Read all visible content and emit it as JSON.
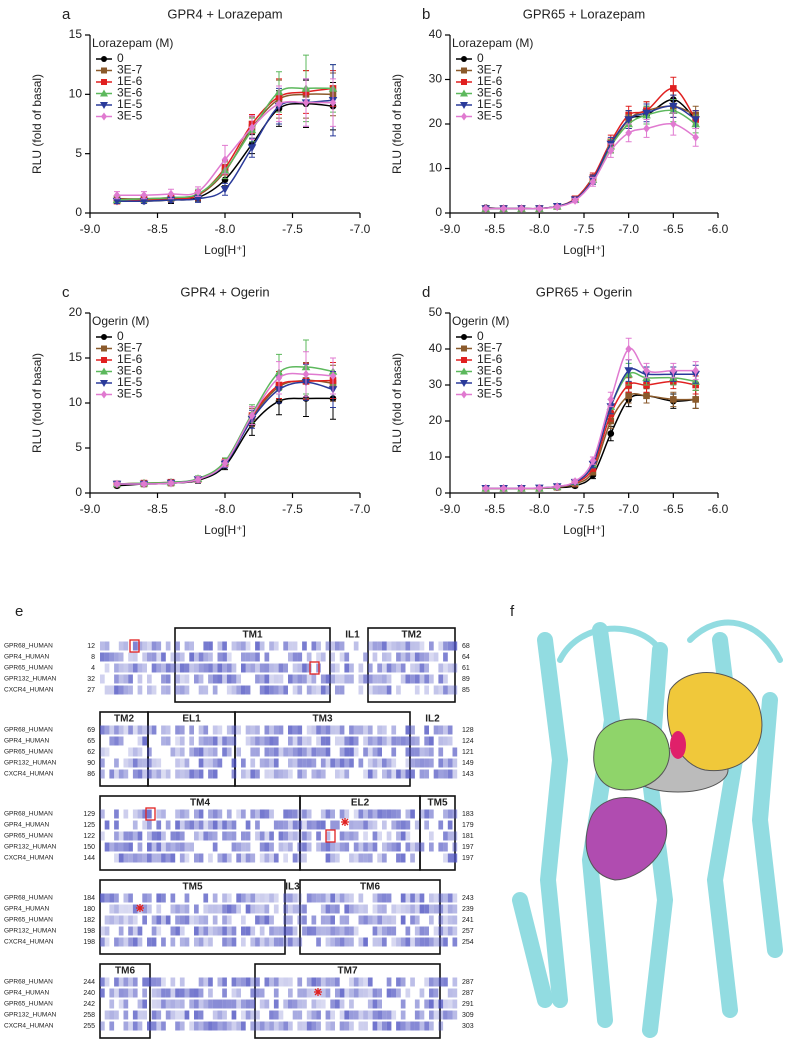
{
  "chart_data": [
    {
      "type": "line",
      "panel": "a",
      "title": "GPR4 + Lorazepam",
      "legend_title": "Lorazepam (M)",
      "legend": "upper left",
      "xlabel": "Log[H⁺]",
      "ylabel": "RLU (fold of basal)",
      "x": [
        -8.8,
        -8.6,
        -8.4,
        -8.2,
        -8.0,
        -7.8,
        -7.6,
        -7.4,
        -7.2
      ],
      "xlim": [
        -9,
        -7
      ],
      "xticks": [
        {
          "value": -9,
          "label": "-9.0"
        },
        {
          "value": -8.5,
          "label": "-8.5"
        },
        {
          "value": -8,
          "label": "-8.0"
        },
        {
          "value": -7.5,
          "label": "-7.5"
        },
        {
          "value": -7,
          "label": "-7.0"
        }
      ],
      "ylim": [
        0,
        15
      ],
      "yticks": [
        0,
        5,
        10,
        15
      ],
      "series": [
        {
          "name": "0",
          "color": "#000000",
          "marker": "circle",
          "values": [
            1,
            1,
            1.1,
            1.3,
            2.8,
            5.8,
            8.8,
            9.2,
            9.0
          ],
          "errors": [
            0.2,
            0.2,
            0.3,
            0.3,
            0.5,
            0.8,
            1.5,
            2,
            2
          ]
        },
        {
          "name": "3E-7",
          "color": "#8b5a2b",
          "marker": "square",
          "values": [
            1.2,
            1.2,
            1.3,
            1.5,
            3.5,
            7.2,
            9.6,
            10,
            10
          ],
          "errors": [
            0.2,
            0.3,
            0.3,
            0.3,
            0.6,
            0.9,
            1.6,
            2,
            1.8
          ]
        },
        {
          "name": "1E-6",
          "color": "#e02020",
          "marker": "square",
          "values": [
            1,
            1.1,
            1.2,
            1.5,
            3.8,
            7.5,
            9.8,
            10.2,
            10.5
          ],
          "errors": [
            0.2,
            0.2,
            0.3,
            0.4,
            0.6,
            0.8,
            1.5,
            1.8,
            1.5
          ]
        },
        {
          "name": "3E-6",
          "color": "#5cb85c",
          "marker": "triangle-up",
          "values": [
            1.1,
            1.2,
            1.3,
            1.6,
            3.6,
            7.0,
            10.2,
            10.5,
            10.5
          ],
          "errors": [
            0.3,
            0.3,
            0.3,
            0.4,
            0.7,
            1,
            1.7,
            2.8,
            2
          ]
        },
        {
          "name": "1E-5",
          "color": "#2a3a9a",
          "marker": "triangle-down",
          "values": [
            1,
            1,
            1.1,
            1.2,
            2.0,
            5.5,
            9.0,
            9.3,
            9.5
          ],
          "errors": [
            0.2,
            0.2,
            0.2,
            0.3,
            0.5,
            0.8,
            1.5,
            2,
            3
          ]
        },
        {
          "name": "3E-5",
          "color": "#e07ad0",
          "marker": "diamond",
          "values": [
            1.5,
            1.5,
            1.6,
            1.8,
            4.5,
            7.2,
            9.2,
            9.3,
            9.3
          ],
          "errors": [
            0.3,
            0.3,
            0.4,
            0.4,
            1.2,
            1,
            1.5,
            2,
            2
          ]
        }
      ]
    },
    {
      "type": "line",
      "panel": "b",
      "title": "GPR65 + Lorazepam",
      "legend_title": "Lorazepam (M)",
      "legend": "upper left",
      "xlabel": "Log[H⁺]",
      "ylabel": "RLU (fold of basal)",
      "x": [
        -8.6,
        -8.4,
        -8.2,
        -8.0,
        -7.8,
        -7.6,
        -7.4,
        -7.2,
        -7.0,
        -6.8,
        -6.5,
        -6.25
      ],
      "xlim": [
        -9,
        -6
      ],
      "xticks": [
        {
          "value": -9,
          "label": "-9.0"
        },
        {
          "value": -8.5,
          "label": "-8.5"
        },
        {
          "value": -8,
          "label": "-8.0"
        },
        {
          "value": -7.5,
          "label": "-7.5"
        },
        {
          "value": -7,
          "label": "-7.0"
        },
        {
          "value": -6.5,
          "label": "-6.5"
        },
        {
          "value": -6,
          "label": "-6.0"
        }
      ],
      "ylim": [
        0,
        40
      ],
      "yticks": [
        0,
        10,
        20,
        30,
        40
      ],
      "series": [
        {
          "name": "0",
          "color": "#000000",
          "marker": "circle",
          "values": [
            1.2,
            1,
            1,
            1,
            1.5,
            3,
            8,
            15,
            21,
            22,
            25.5,
            21
          ],
          "errors": [
            0.3,
            0.3,
            0.3,
            0.3,
            0.3,
            0.5,
            1,
            1.5,
            2,
            2,
            2.5,
            2
          ]
        },
        {
          "name": "3E-7",
          "color": "#8b5a2b",
          "marker": "square",
          "values": [
            1,
            1,
            1,
            1,
            1.5,
            3,
            7.5,
            15,
            21,
            23,
            24,
            22
          ],
          "errors": [
            0.3,
            0.3,
            0.3,
            0.3,
            0.3,
            0.5,
            1,
            1.5,
            2,
            2,
            2.5,
            2
          ]
        },
        {
          "name": "1E-6",
          "color": "#e02020",
          "marker": "square",
          "values": [
            1,
            1,
            1,
            1,
            1.5,
            3.2,
            8,
            16,
            22,
            23,
            28,
            21
          ],
          "errors": [
            0.3,
            0.3,
            0.3,
            0.3,
            0.3,
            0.5,
            1,
            1.5,
            2,
            2,
            2.5,
            2
          ]
        },
        {
          "name": "3E-6",
          "color": "#5cb85c",
          "marker": "triangle-up",
          "values": [
            1,
            1,
            1,
            1,
            1.5,
            3,
            7.5,
            15,
            20,
            22,
            23,
            20
          ],
          "errors": [
            0.3,
            0.3,
            0.3,
            0.3,
            0.3,
            0.5,
            1,
            1.5,
            2,
            2,
            2.5,
            2
          ]
        },
        {
          "name": "1E-5",
          "color": "#2a3a9a",
          "marker": "triangle-down",
          "values": [
            1,
            1,
            1,
            1,
            1.5,
            3,
            7.5,
            15.5,
            21,
            22.5,
            24,
            21
          ],
          "errors": [
            0.3,
            0.3,
            0.3,
            0.3,
            0.3,
            0.5,
            1,
            1.5,
            2,
            2,
            2.5,
            2
          ]
        },
        {
          "name": "3E-5",
          "color": "#e07ad0",
          "marker": "diamond",
          "values": [
            1,
            1,
            1,
            1,
            1.4,
            2.8,
            7,
            14,
            18,
            19,
            20,
            17
          ],
          "errors": [
            0.3,
            0.3,
            0.3,
            0.3,
            0.3,
            0.5,
            1,
            1.5,
            2,
            2,
            2.5,
            2
          ]
        }
      ]
    },
    {
      "type": "line",
      "panel": "c",
      "title": "GPR4 + Ogerin",
      "legend_title": "Ogerin (M)",
      "legend": "upper left",
      "xlabel": "Log[H⁺]",
      "ylabel": "RLU (fold of basal)",
      "x": [
        -8.8,
        -8.6,
        -8.4,
        -8.2,
        -8.0,
        -7.8,
        -7.6,
        -7.4,
        -7.2
      ],
      "xlim": [
        -9,
        -7
      ],
      "xticks": [
        {
          "value": -9,
          "label": "-9.0"
        },
        {
          "value": -8.5,
          "label": "-8.5"
        },
        {
          "value": -8,
          "label": "-8.0"
        },
        {
          "value": -7.5,
          "label": "-7.5"
        },
        {
          "value": -7,
          "label": "-7.0"
        }
      ],
      "ylim": [
        0,
        20
      ],
      "yticks": [
        0,
        5,
        10,
        15,
        20
      ],
      "series": [
        {
          "name": "0",
          "color": "#000000",
          "marker": "circle",
          "values": [
            0.8,
            1,
            1.1,
            1.4,
            3.0,
            7.6,
            10.2,
            10.5,
            10.5
          ],
          "errors": [
            0.2,
            0.2,
            0.2,
            0.3,
            0.4,
            1.2,
            1.5,
            2,
            2.3
          ]
        },
        {
          "name": "3E-7",
          "color": "#8b5a2b",
          "marker": "square",
          "values": [
            1,
            1,
            1.1,
            1.5,
            3.3,
            8.4,
            11.8,
            12.5,
            12.2
          ],
          "errors": [
            0.2,
            0.2,
            0.2,
            0.3,
            0.4,
            1,
            1.5,
            2,
            2
          ]
        },
        {
          "name": "1E-6",
          "color": "#e02020",
          "marker": "square",
          "values": [
            1,
            1.1,
            1.2,
            1.5,
            3.4,
            8.6,
            12,
            12.4,
            12.5
          ],
          "errors": [
            0.2,
            0.2,
            0.2,
            0.3,
            0.4,
            1,
            1.5,
            2,
            2
          ]
        },
        {
          "name": "3E-6",
          "color": "#5cb85c",
          "marker": "triangle-up",
          "values": [
            1,
            1.1,
            1.2,
            1.6,
            3.5,
            8.8,
            13.4,
            14,
            13.5
          ],
          "errors": [
            0.2,
            0.2,
            0.2,
            0.3,
            0.4,
            1,
            2,
            3,
            1.5
          ]
        },
        {
          "name": "1E-5",
          "color": "#2a3a9a",
          "marker": "triangle-down",
          "values": [
            1,
            1,
            1.1,
            1.5,
            3.2,
            8.2,
            11.5,
            12.3,
            11.5
          ],
          "errors": [
            0.2,
            0.2,
            0.2,
            0.3,
            0.4,
            1,
            1.5,
            2,
            2
          ]
        },
        {
          "name": "3E-5",
          "color": "#e07ad0",
          "marker": "diamond",
          "values": [
            1,
            1,
            1.1,
            1.5,
            3.3,
            8.6,
            12.8,
            13.2,
            13
          ],
          "errors": [
            0.2,
            0.2,
            0.2,
            0.3,
            0.4,
            1,
            1.8,
            2.5,
            2
          ]
        }
      ]
    },
    {
      "type": "line",
      "panel": "d",
      "title": "GPR65 + Ogerin",
      "legend_title": "Ogerin (M)",
      "legend": "upper left",
      "xlabel": "Log[H⁺]",
      "ylabel": "RLU (fold of basal)",
      "x": [
        -8.6,
        -8.4,
        -8.2,
        -8.0,
        -7.8,
        -7.6,
        -7.4,
        -7.2,
        -7.0,
        -6.8,
        -6.5,
        -6.25
      ],
      "xlim": [
        -9,
        -6
      ],
      "xticks": [
        {
          "value": -9,
          "label": "-9.0"
        },
        {
          "value": -8.5,
          "label": "-8.5"
        },
        {
          "value": -8,
          "label": "-8.0"
        },
        {
          "value": -7.5,
          "label": "-7.5"
        },
        {
          "value": -7,
          "label": "-7.0"
        },
        {
          "value": -6.5,
          "label": "-6.5"
        },
        {
          "value": -6,
          "label": "-6.0"
        }
      ],
      "ylim": [
        0,
        50
      ],
      "yticks": [
        0,
        10,
        20,
        30,
        40,
        50
      ],
      "series": [
        {
          "name": "0",
          "color": "#000000",
          "marker": "circle",
          "values": [
            1.3,
            1.3,
            1.3,
            1.3,
            1.5,
            2,
            5,
            16.5,
            26,
            27,
            25.5,
            26
          ],
          "errors": [
            0.3,
            0.3,
            0.3,
            0.3,
            0.3,
            0.5,
            1,
            2,
            2,
            2,
            2,
            2.5
          ]
        },
        {
          "name": "3E-7",
          "color": "#8b5a2b",
          "marker": "square",
          "values": [
            1.3,
            1.3,
            1.3,
            1.3,
            1.6,
            2.5,
            6,
            20,
            27,
            27,
            26,
            26
          ],
          "errors": [
            0.3,
            0.3,
            0.3,
            0.3,
            0.3,
            0.5,
            1,
            2,
            2,
            2,
            2,
            2.5
          ]
        },
        {
          "name": "1E-6",
          "color": "#e02020",
          "marker": "square",
          "values": [
            1.3,
            1.3,
            1.3,
            1.3,
            1.7,
            2.8,
            7,
            22,
            30,
            30,
            31,
            30
          ],
          "errors": [
            0.3,
            0.3,
            0.3,
            0.3,
            0.3,
            0.5,
            1,
            2,
            2,
            2,
            2,
            2.5
          ]
        },
        {
          "name": "3E-6",
          "color": "#5cb85c",
          "marker": "triangle-up",
          "values": [
            1.3,
            1.3,
            1.3,
            1.3,
            1.7,
            3,
            8,
            24,
            33,
            32,
            32,
            31
          ],
          "errors": [
            0.3,
            0.3,
            0.3,
            0.3,
            0.3,
            0.5,
            1,
            2,
            3,
            2,
            2,
            2.5
          ]
        },
        {
          "name": "1E-5",
          "color": "#2a3a9a",
          "marker": "triangle-down",
          "values": [
            1.3,
            1.3,
            1.3,
            1.4,
            1.8,
            3,
            8,
            24,
            34,
            33,
            33,
            33
          ],
          "errors": [
            0.3,
            0.3,
            0.3,
            0.3,
            0.3,
            0.5,
            1,
            2,
            3,
            2,
            2,
            2.5
          ]
        },
        {
          "name": "3E-5",
          "color": "#e07ad0",
          "marker": "diamond",
          "values": [
            1.3,
            1.3,
            1.3,
            1.4,
            1.8,
            3.2,
            9,
            26,
            40,
            34,
            34,
            34
          ],
          "errors": [
            0.3,
            0.3,
            0.3,
            0.3,
            0.3,
            0.5,
            1,
            2,
            3,
            2,
            2,
            2.5
          ]
        }
      ]
    }
  ],
  "alignment": {
    "panel": "e",
    "names": [
      "GPR68_HUMAN",
      "GPR4_HUMAN",
      "GPR65_HUMAN",
      "GPR132_HUMAN",
      "CXCR4_HUMAN"
    ],
    "blocks": [
      {
        "regions": [
          "TM1",
          "IL1",
          "TM2"
        ],
        "starts": [
          12,
          8,
          4,
          32,
          27
        ],
        "ends": [
          68,
          64,
          61,
          89,
          85
        ]
      },
      {
        "regions": [
          "TM2",
          "EL1",
          "TM3",
          "IL2"
        ],
        "starts": [
          69,
          65,
          62,
          90,
          86
        ],
        "ends": [
          128,
          124,
          121,
          149,
          143
        ]
      },
      {
        "regions": [
          "TM4",
          "EL2",
          "TM5"
        ],
        "starts": [
          129,
          125,
          122,
          150,
          144
        ],
        "ends": [
          183,
          179,
          181,
          197,
          197
        ]
      },
      {
        "regions": [
          "TM5",
          "IL3",
          "TM6"
        ],
        "starts": [
          184,
          180,
          182,
          198,
          198
        ],
        "ends": [
          243,
          239,
          241,
          257,
          254
        ]
      },
      {
        "regions": [
          "TM6",
          "TM7"
        ],
        "starts": [
          244,
          240,
          242,
          258,
          255
        ],
        "ends": [
          287,
          287,
          291,
          309,
          303
        ]
      }
    ]
  },
  "structure": {
    "panel": "f"
  }
}
